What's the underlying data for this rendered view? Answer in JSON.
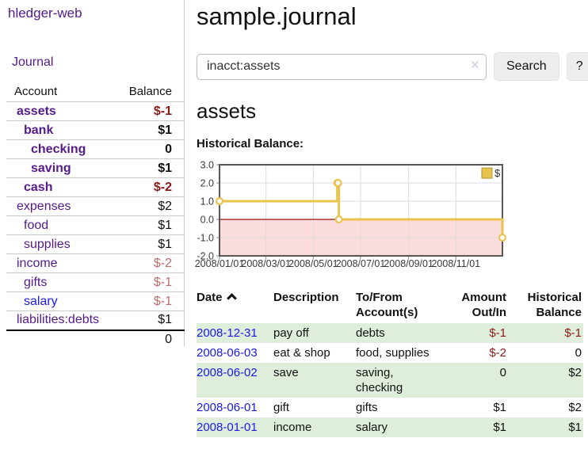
{
  "colors": {
    "link_purple": "#551a8b",
    "link_blue": "#1a1ae8",
    "neg_strong": "#8b1a1a",
    "neg_soft": "#bd6c6c",
    "row_green": "#dfeeda"
  },
  "sidebar": {
    "app_title": "hledger-web",
    "journal_link": "Journal",
    "accounts": {
      "headers": {
        "account": "Account",
        "balance": "Balance"
      },
      "rows": [
        {
          "name": "assets",
          "balance": "$-1"
        },
        {
          "name": "bank",
          "balance": "$1"
        },
        {
          "name": "checking",
          "balance": "0"
        },
        {
          "name": "saving",
          "balance": "$1"
        },
        {
          "name": "cash",
          "balance": "$-2"
        },
        {
          "name": "expenses",
          "balance": "$2"
        },
        {
          "name": "food",
          "balance": "$1"
        },
        {
          "name": "supplies",
          "balance": "$1"
        },
        {
          "name": "income",
          "balance": "$-2"
        },
        {
          "name": "gifts",
          "balance": "$-1"
        },
        {
          "name": "salary",
          "balance": "$-1"
        },
        {
          "name": "liabilities:debts",
          "balance": "$1"
        }
      ],
      "total": "0"
    }
  },
  "main": {
    "title": "sample.journal",
    "search": {
      "value": "inacct:assets",
      "clear_icon": "×",
      "search_button": "Search",
      "help_button": "?"
    },
    "account_heading": "assets",
    "chart_label": "Historical Balance:",
    "register": {
      "headers": {
        "date": "Date",
        "description": "Description",
        "accounts": "To/From Account(s)",
        "amount": "Amount Out/In",
        "balance": "Historical Balance"
      },
      "rows": [
        {
          "date": "2008-12-31",
          "description": "pay off",
          "accounts": "debts",
          "amount": "$-1",
          "balance": "$-1"
        },
        {
          "date": "2008-06-03",
          "description": "eat & shop",
          "accounts": "food, supplies",
          "amount": "$-2",
          "balance": "0"
        },
        {
          "date": "2008-06-02",
          "description": "save",
          "accounts": "saving, checking",
          "amount": "0",
          "balance": "$2"
        },
        {
          "date": "2008-06-01",
          "description": "gift",
          "accounts": "gifts",
          "amount": "$1",
          "balance": "$2"
        },
        {
          "date": "2008-01-01",
          "description": "income",
          "accounts": "salary",
          "amount": "$1",
          "balance": "$1"
        }
      ]
    }
  },
  "chart_data": {
    "type": "line",
    "step": true,
    "title": "Historical Balance",
    "legend": [
      {
        "label": "$",
        "color": "#e8c34e"
      }
    ],
    "legend_position": "top-right",
    "grid": true,
    "x_range": [
      "2008-01-01",
      "2008-12-31"
    ],
    "ylim": [
      -2,
      3
    ],
    "yticks": [
      {
        "label": "3.0",
        "value": 3
      },
      {
        "label": "2.0",
        "value": 2
      },
      {
        "label": "1.0",
        "value": 1
      },
      {
        "label": "0.0",
        "value": 0
      },
      {
        "label": "-1.0",
        "value": -1
      },
      {
        "label": "-2.0",
        "value": -2
      }
    ],
    "xticks": [
      {
        "label": "2008/01/01",
        "date": "2008-01-01"
      },
      {
        "label": "2008/03/01",
        "date": "2008-03-01"
      },
      {
        "label": "2008/05/01",
        "date": "2008-05-01"
      },
      {
        "label": "2008/07/01",
        "date": "2008-07-01"
      },
      {
        "label": "2008/09/01",
        "date": "2008-09-01"
      },
      {
        "label": "2008/11/01",
        "date": "2008-11-01"
      }
    ],
    "series": [
      {
        "name": "$",
        "color": "#e8c34e",
        "points": [
          [
            "2008-01-01",
            1
          ],
          [
            "2008-06-01",
            2
          ],
          [
            "2008-06-02",
            2
          ],
          [
            "2008-06-03",
            0
          ],
          [
            "2008-12-31",
            -1
          ]
        ]
      }
    ],
    "colors": {
      "negative_region": "#fbdcdc",
      "zero_line": "#991111"
    }
  }
}
